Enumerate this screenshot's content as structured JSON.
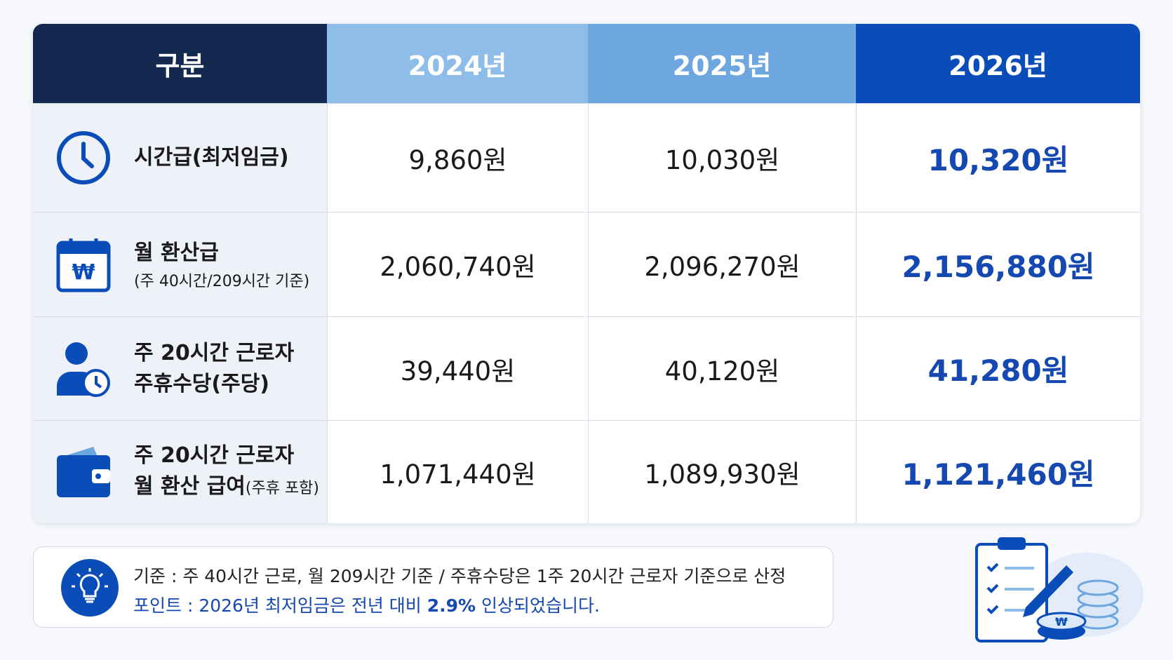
{
  "table": {
    "header": [
      "구분",
      "2024년",
      "2025년",
      "2026년"
    ],
    "rows": [
      {
        "label": [
          "시간급(최저임금)"
        ],
        "cells": [
          "9,860원",
          "10,030원",
          "10,320원"
        ]
      },
      {
        "label": [
          "월 환산급"
        ],
        "note": "(주 40시간/209시간 기준)",
        "cells": [
          "2,060,740원",
          "2,096,270원",
          "2,156,880원"
        ]
      },
      {
        "label": [
          "주 20시간 근로자",
          "주휴수당(주당)"
        ],
        "cells": [
          "39,440원",
          "40,120원",
          "41,280원"
        ]
      },
      {
        "label": [
          "주 20시간 근로자",
          "월 환산 급여"
        ],
        "note": "(주휴 포함)",
        "cells": [
          "1,071,440원",
          "1,089,930원",
          "1,121,460원"
        ]
      }
    ]
  },
  "notes": {
    "basis": "기준 : 주 40시간 근로, 월 209시간 기준 / 주휴수당은 1주 20시간 근로자 기준으로 산정",
    "point": {
      "prefix": "포인트 : 2026년 최저임금은 전년 대비 ",
      "highlight": "2.9%",
      "suffix": " 인상되었습니다."
    }
  }
}
